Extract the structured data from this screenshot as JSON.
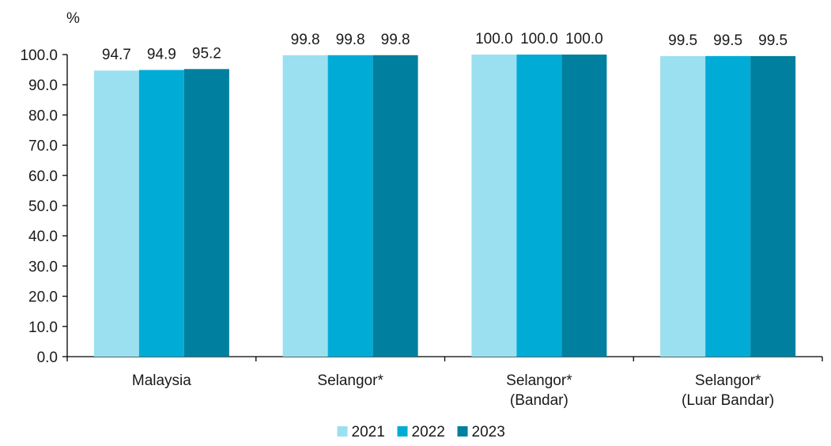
{
  "chart_data": {
    "type": "bar",
    "unit": "%",
    "categories": [
      [
        "Malaysia"
      ],
      [
        "Selangor*"
      ],
      [
        "Selangor*",
        "(Bandar)"
      ],
      [
        "Selangor*",
        "(Luar Bandar)"
      ]
    ],
    "series": [
      {
        "name": "2021",
        "color": "#9ae0f0",
        "values": [
          94.7,
          99.8,
          100.0,
          99.5
        ]
      },
      {
        "name": "2022",
        "color": "#00acd6",
        "values": [
          94.9,
          99.8,
          100.0,
          99.5
        ]
      },
      {
        "name": "2023",
        "color": "#007f9e",
        "values": [
          95.2,
          99.8,
          100.0,
          99.5
        ]
      }
    ],
    "ylim": [
      0,
      100
    ],
    "yticks": [
      "0.0",
      "10.0",
      "20.0",
      "30.0",
      "40.0",
      "50.0",
      "60.0",
      "70.0",
      "80.0",
      "90.0",
      "100.0"
    ],
    "data_labels": [
      [
        "94.7",
        "99.8",
        "100.0",
        "99.5"
      ],
      [
        "94.9",
        "99.8",
        "100.0",
        "99.5"
      ],
      [
        "95.2",
        "99.8",
        "100.0",
        "99.5"
      ]
    ],
    "grid": false,
    "legend_position": "bottom-center"
  }
}
